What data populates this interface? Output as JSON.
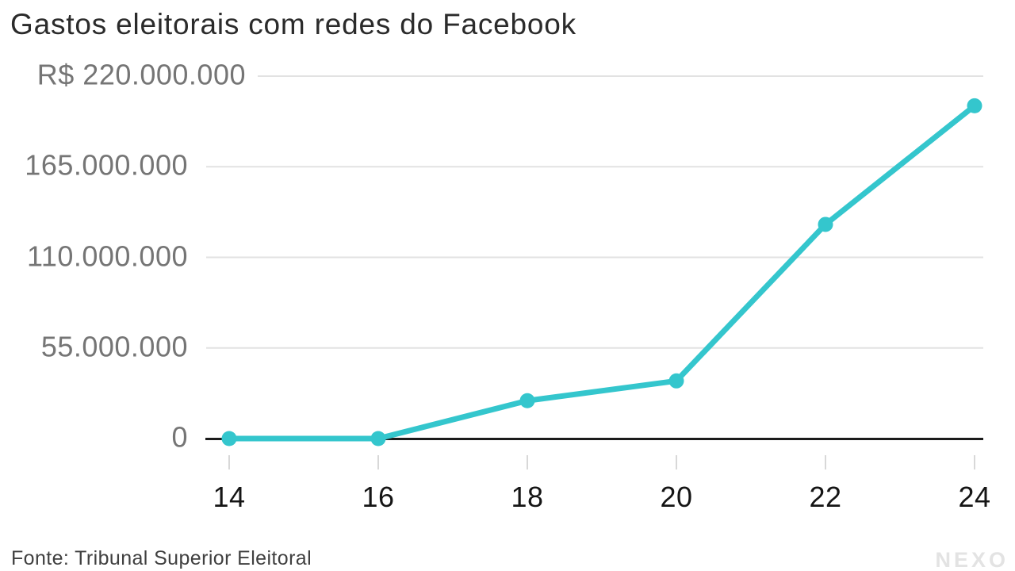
{
  "chart_data": {
    "type": "line",
    "title": "Gastos eleitorais com redes do Facebook",
    "x": [
      2014,
      2016,
      2018,
      2020,
      2022,
      2024
    ],
    "x_tick_labels": [
      "14",
      "16",
      "18",
      "20",
      "22",
      "24"
    ],
    "values": [
      0,
      0,
      23000000,
      35000000,
      130000000,
      202000000
    ],
    "y_ticks": [
      0,
      55000000,
      110000000,
      165000000,
      220000000
    ],
    "y_tick_labels": [
      "0",
      "55.000.000",
      "110.000.000",
      "165.000.000",
      "R$ 220.000.000"
    ],
    "ylim": [
      0,
      220000000
    ],
    "xlim": [
      2014,
      2024
    ],
    "grid": "horizontal",
    "legend": "none",
    "marker": "circle",
    "line_color": "#34c6cd"
  },
  "footer": {
    "source": "Fonte: Tribunal Superior Eleitoral",
    "logo_text": "NEXO"
  },
  "colors": {
    "accent": "#34c6cd",
    "gridline": "#e2e2e2",
    "axis_line": "#1b1b1b",
    "tick_mark": "#d8d8d8",
    "y_label_text": "#757575",
    "x_label_text": "#151515",
    "title_text": "#2b2b2b",
    "source_text": "#404040",
    "logo_text_color": "#e3e3e3"
  }
}
